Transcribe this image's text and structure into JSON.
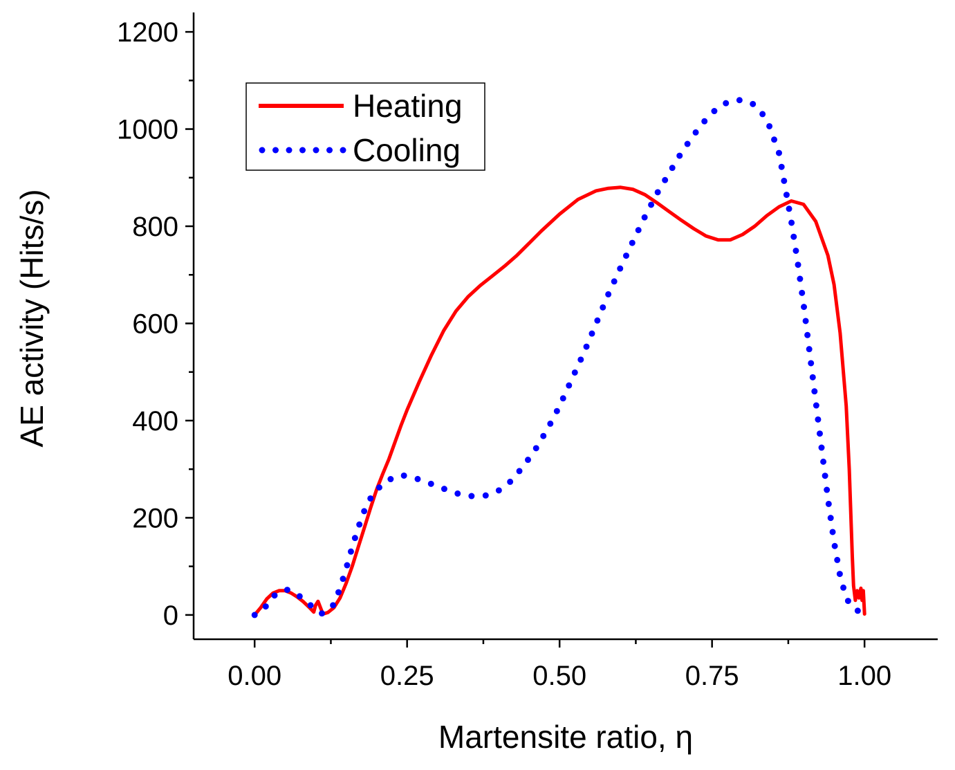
{
  "chart_data": {
    "type": "line",
    "xlabel": "Martensite ratio, η",
    "ylabel": "AE activity (Hits/s)",
    "xlim": [
      -0.1,
      1.12
    ],
    "ylim": [
      -50,
      1240
    ],
    "x_ticks": [
      0.0,
      0.25,
      0.5,
      0.75,
      1.0
    ],
    "x_tick_labels": [
      "0.00",
      "0.25",
      "0.50",
      "0.75",
      "1.00"
    ],
    "x_minor_ticks": [
      0.125,
      0.375,
      0.625,
      0.875
    ],
    "y_ticks": [
      0,
      200,
      400,
      600,
      800,
      1000,
      1200
    ],
    "y_tick_labels": [
      "0",
      "200",
      "400",
      "600",
      "800",
      "1000",
      "1200"
    ],
    "y_minor_ticks": [
      100,
      300,
      500,
      700,
      900,
      1100
    ],
    "grid": false,
    "legend": {
      "position": "top-left"
    },
    "series": [
      {
        "name": "Heating",
        "style": "solid",
        "color": "#ff0000",
        "points": [
          [
            0.0,
            0
          ],
          [
            0.01,
            15
          ],
          [
            0.02,
            33
          ],
          [
            0.03,
            45
          ],
          [
            0.04,
            50
          ],
          [
            0.05,
            50
          ],
          [
            0.06,
            45
          ],
          [
            0.07,
            37
          ],
          [
            0.08,
            27
          ],
          [
            0.09,
            15
          ],
          [
            0.097,
            6
          ],
          [
            0.1,
            20
          ],
          [
            0.104,
            28
          ],
          [
            0.108,
            15
          ],
          [
            0.112,
            2
          ],
          [
            0.12,
            5
          ],
          [
            0.13,
            15
          ],
          [
            0.14,
            35
          ],
          [
            0.15,
            65
          ],
          [
            0.16,
            100
          ],
          [
            0.17,
            140
          ],
          [
            0.18,
            180
          ],
          [
            0.19,
            220
          ],
          [
            0.2,
            258
          ],
          [
            0.21,
            290
          ],
          [
            0.22,
            320
          ],
          [
            0.23,
            355
          ],
          [
            0.24,
            390
          ],
          [
            0.25,
            422
          ],
          [
            0.27,
            480
          ],
          [
            0.29,
            535
          ],
          [
            0.31,
            585
          ],
          [
            0.33,
            625
          ],
          [
            0.35,
            655
          ],
          [
            0.37,
            678
          ],
          [
            0.39,
            698
          ],
          [
            0.41,
            718
          ],
          [
            0.43,
            740
          ],
          [
            0.45,
            765
          ],
          [
            0.47,
            790
          ],
          [
            0.5,
            825
          ],
          [
            0.53,
            855
          ],
          [
            0.56,
            873
          ],
          [
            0.58,
            878
          ],
          [
            0.6,
            880
          ],
          [
            0.62,
            876
          ],
          [
            0.64,
            865
          ],
          [
            0.66,
            848
          ],
          [
            0.68,
            830
          ],
          [
            0.7,
            812
          ],
          [
            0.72,
            795
          ],
          [
            0.74,
            780
          ],
          [
            0.76,
            772
          ],
          [
            0.78,
            772
          ],
          [
            0.8,
            783
          ],
          [
            0.82,
            800
          ],
          [
            0.84,
            822
          ],
          [
            0.86,
            840
          ],
          [
            0.88,
            852
          ],
          [
            0.9,
            845
          ],
          [
            0.92,
            810
          ],
          [
            0.94,
            740
          ],
          [
            0.95,
            680
          ],
          [
            0.96,
            580
          ],
          [
            0.97,
            430
          ],
          [
            0.975,
            300
          ],
          [
            0.98,
            120
          ],
          [
            0.982,
            60
          ],
          [
            0.985,
            30
          ],
          [
            0.988,
            50
          ],
          [
            0.991,
            35
          ],
          [
            0.994,
            55
          ],
          [
            0.996,
            30
          ],
          [
            0.998,
            50
          ],
          [
            1.0,
            2
          ]
        ]
      },
      {
        "name": "Cooling",
        "style": "dotted",
        "color": "#0000ff",
        "points": [
          [
            0.0,
            0
          ],
          [
            0.015,
            12
          ],
          [
            0.03,
            38
          ],
          [
            0.045,
            50
          ],
          [
            0.055,
            52
          ],
          [
            0.07,
            42
          ],
          [
            0.085,
            28
          ],
          [
            0.1,
            10
          ],
          [
            0.11,
            3
          ],
          [
            0.12,
            8
          ],
          [
            0.13,
            22
          ],
          [
            0.14,
            55
          ],
          [
            0.15,
            95
          ],
          [
            0.16,
            140
          ],
          [
            0.17,
            180
          ],
          [
            0.18,
            215
          ],
          [
            0.19,
            240
          ],
          [
            0.2,
            258
          ],
          [
            0.22,
            278
          ],
          [
            0.24,
            288
          ],
          [
            0.26,
            283
          ],
          [
            0.28,
            274
          ],
          [
            0.3,
            265
          ],
          [
            0.32,
            255
          ],
          [
            0.34,
            247
          ],
          [
            0.36,
            244
          ],
          [
            0.38,
            246
          ],
          [
            0.4,
            256
          ],
          [
            0.42,
            275
          ],
          [
            0.44,
            305
          ],
          [
            0.46,
            340
          ],
          [
            0.48,
            382
          ],
          [
            0.5,
            430
          ],
          [
            0.52,
            485
          ],
          [
            0.54,
            540
          ],
          [
            0.56,
            600
          ],
          [
            0.58,
            660
          ],
          [
            0.6,
            715
          ],
          [
            0.62,
            768
          ],
          [
            0.64,
            820
          ],
          [
            0.66,
            868
          ],
          [
            0.68,
            910
          ],
          [
            0.7,
            952
          ],
          [
            0.72,
            988
          ],
          [
            0.74,
            1020
          ],
          [
            0.76,
            1045
          ],
          [
            0.78,
            1058
          ],
          [
            0.8,
            1060
          ],
          [
            0.82,
            1050
          ],
          [
            0.84,
            1020
          ],
          [
            0.86,
            950
          ],
          [
            0.87,
            880
          ],
          [
            0.88,
            810
          ],
          [
            0.89,
            730
          ],
          [
            0.9,
            640
          ],
          [
            0.91,
            540
          ],
          [
            0.92,
            440
          ],
          [
            0.93,
            340
          ],
          [
            0.94,
            240
          ],
          [
            0.95,
            150
          ],
          [
            0.96,
            80
          ],
          [
            0.97,
            35
          ],
          [
            0.98,
            15
          ],
          [
            0.99,
            8
          ],
          [
            1.0,
            3
          ]
        ]
      }
    ]
  }
}
